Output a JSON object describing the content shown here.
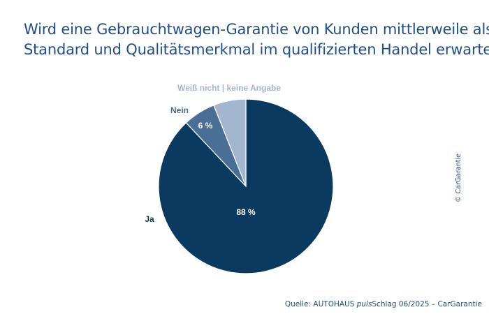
{
  "title": {
    "line1": "Wird eine Gebrauchtwagen-Garantie von Kunden mittlerweile als",
    "line2": "Standard und Qualitätsmerkmal im qualifizierten Handel erwartet?"
  },
  "chart_data": {
    "type": "pie",
    "start": "12 o'clock",
    "direction": "clockwise",
    "slices": [
      {
        "label": "Ja",
        "value": 88,
        "value_label": "88 %",
        "color": "#0b3a60"
      },
      {
        "label": "Nein",
        "value": 6,
        "value_label": "6 %",
        "color": "#4a6f96"
      },
      {
        "label": "Weiß nicht | keine Angabe",
        "value": 6,
        "value_label": "",
        "color": "#a3b6cf"
      }
    ]
  },
  "copyright": "© CarGarantie",
  "source": {
    "prefix": "Quelle: AUTOHAUS ",
    "italic": "puls",
    "suffix": "Schlag 06/2025 – CarGarantie"
  },
  "colors": {
    "title": "#1f4f86",
    "ja": "#0b3a60",
    "nein": "#4a6f96",
    "weiss_nicht": "#a3b6cf"
  }
}
